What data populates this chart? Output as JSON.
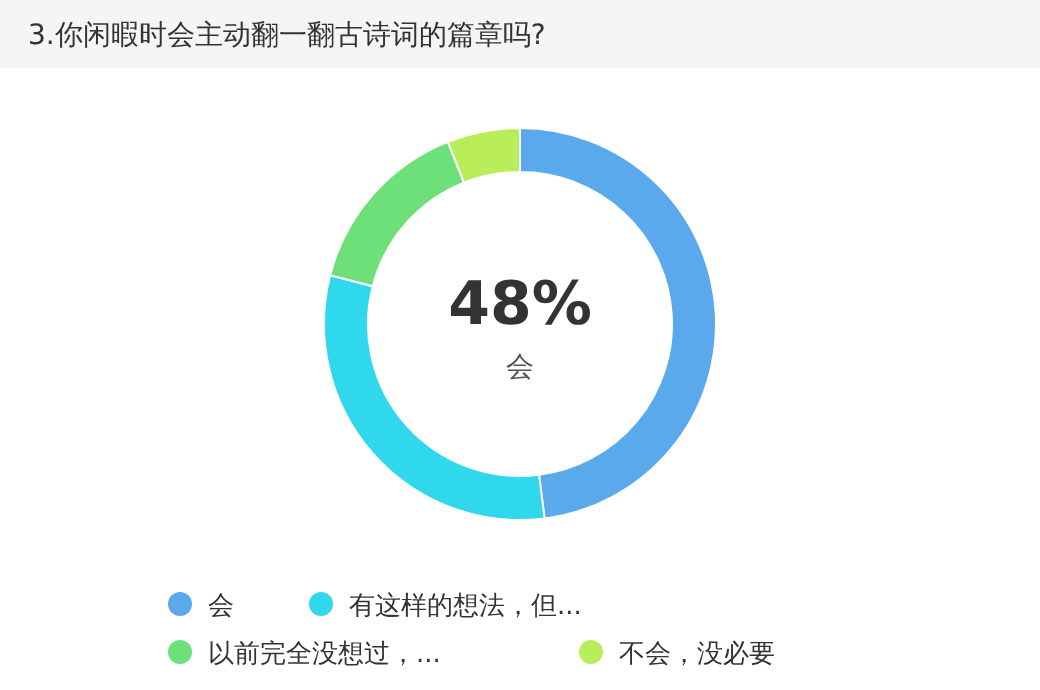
{
  "chart_data": {
    "type": "donut",
    "title": "3.你闲暇时会主动翻一翻古诗词的篇章吗?",
    "categories": [
      "会",
      "有这样的想法，但...",
      "以前完全没想过，...",
      "不会，没必要"
    ],
    "values": [
      48,
      31,
      15,
      6
    ],
    "colors": [
      "#5aa9ec",
      "#2fd8ec",
      "#6de07a",
      "#b9ee5a"
    ],
    "value_labels": [
      "48%",
      null,
      null,
      null
    ],
    "legend": "bottom"
  }
}
